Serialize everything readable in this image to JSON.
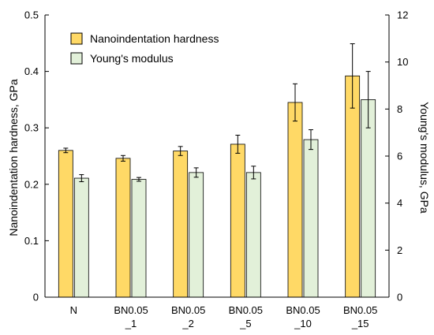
{
  "chart_data": {
    "type": "bar",
    "categories": [
      [
        "N"
      ],
      [
        "BN0.05",
        "_1"
      ],
      [
        "BN0.05",
        "_2"
      ],
      [
        "BN0.05",
        "_5"
      ],
      [
        "BN0.05",
        "_10"
      ],
      [
        "BN0.05",
        "_15"
      ]
    ],
    "series": [
      {
        "name": "Nanoindentation hardness",
        "axis": "left",
        "color": "#FFD966",
        "values": [
          0.26,
          0.246,
          0.259,
          0.271,
          0.345,
          0.392
        ],
        "errors": [
          0.004,
          0.005,
          0.008,
          0.016,
          0.033,
          0.057
        ]
      },
      {
        "name": "Young's modulus",
        "axis": "right",
        "color": "#E2F0D9",
        "values": [
          5.06,
          5.01,
          5.3,
          5.3,
          6.7,
          8.4
        ],
        "errors": [
          0.15,
          0.08,
          0.2,
          0.27,
          0.42,
          1.2
        ]
      }
    ],
    "ylabel": "Nanoindentation hardness, GPa",
    "ylabel_right": "Young's modulus, GPa",
    "ylim": [
      0,
      0.5
    ],
    "ylim_right": [
      0,
      12
    ],
    "yticks": [
      "0",
      "0.1",
      "0.2",
      "0.3",
      "0.4",
      "0.5"
    ],
    "yticks_right": [
      "0",
      "2",
      "4",
      "6",
      "8",
      "10",
      "12"
    ],
    "legend_position": "top-left",
    "grid": false
  }
}
